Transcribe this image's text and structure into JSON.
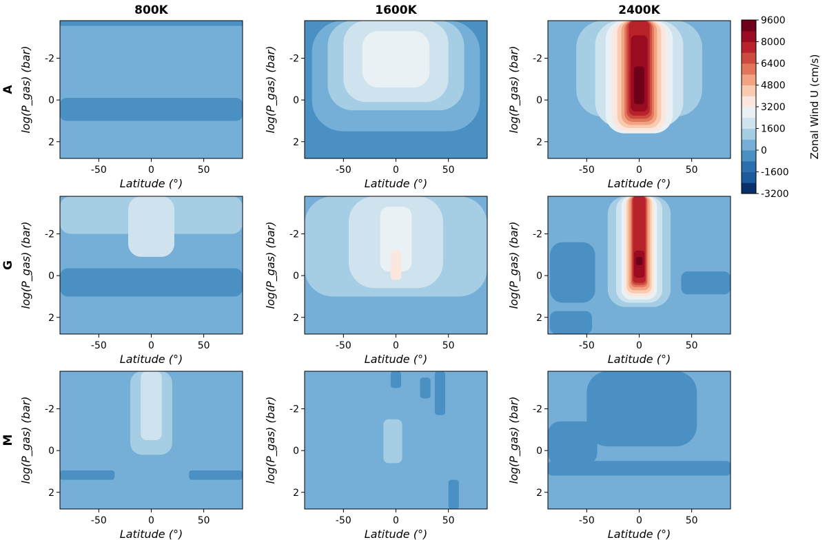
{
  "chart_data": {
    "type": "contour",
    "column_titles": [
      "800K",
      "1600K",
      "2400K"
    ],
    "row_titles": [
      "A",
      "G",
      "M"
    ],
    "xlabel": "Latitude (°)",
    "ylabel": "log(P_gas) (bar)",
    "xlim": [
      -87,
      87
    ],
    "ylim": [
      2.8,
      -3.8
    ],
    "x_ticks": [
      -50,
      0,
      50
    ],
    "y_ticks": [
      -2,
      0,
      2
    ],
    "colorbar": {
      "label": "Zonal Wind U (cm/s)",
      "levels": [
        -3200,
        -2400,
        -1600,
        -800,
        0,
        800,
        1600,
        2400,
        3200,
        4000,
        4800,
        5600,
        6400,
        7200,
        8000,
        8800,
        9600
      ],
      "tick_labels": [
        9600,
        8000,
        6400,
        4800,
        3200,
        1600,
        0,
        -1600,
        -3200
      ],
      "colors": [
        "#08306b",
        "#1c5a9c",
        "#2b6fae",
        "#4a90c2",
        "#75afd7",
        "#a5cde3",
        "#cfe3ee",
        "#eaf1f5",
        "#fbe7de",
        "#f9cbb0",
        "#f1a384",
        "#e2765b",
        "#cd4a3f",
        "#b8232b",
        "#9a0b22",
        "#6e0019"
      ]
    },
    "panels": [
      {
        "model": "A",
        "temperature": "800K",
        "background_u": 400,
        "regions": [
          {
            "u": -400,
            "lat": [
              -87,
              87
            ],
            "p": [
              -0.1,
              1.0
            ]
          },
          {
            "u": -400,
            "lat": [
              -87,
              87
            ],
            "p": [
              -3.8,
              -3.55
            ]
          },
          {
            "u": 400,
            "lat": [
              -84,
              -29
            ],
            "p": [
              1.45,
              2.8
            ]
          },
          {
            "u": 400,
            "lat": [
              -25,
              83
            ],
            "p": [
              1.45,
              2.8
            ]
          }
        ]
      },
      {
        "model": "A",
        "temperature": "1600K",
        "background_u": -400,
        "regions": [
          {
            "u": 400,
            "lat": [
              -80,
              80
            ],
            "p": [
              -3.8,
              1.5
            ]
          },
          {
            "u": 1200,
            "lat": [
              -65,
              65
            ],
            "p": [
              -3.8,
              0.5
            ]
          },
          {
            "u": 2000,
            "lat": [
              -50,
              50
            ],
            "p": [
              -3.8,
              0.1
            ]
          },
          {
            "u": 2800,
            "lat": [
              -32,
              32
            ],
            "p": [
              -3.3,
              -0.6
            ]
          }
        ]
      },
      {
        "model": "A",
        "temperature": "2400K",
        "background_u": 400,
        "regions": [
          {
            "u": 1200,
            "lat": [
              -60,
              60
            ],
            "p": [
              -3.8,
              0.8
            ]
          },
          {
            "u": 2000,
            "lat": [
              -42,
              42
            ],
            "p": [
              -3.8,
              1.3
            ]
          },
          {
            "u": 2800,
            "lat": [
              -32,
              32
            ],
            "p": [
              -3.8,
              1.6
            ]
          },
          {
            "u": 3600,
            "lat": [
              -26,
              26
            ],
            "p": [
              -3.8,
              1.5
            ]
          },
          {
            "u": 4400,
            "lat": [
              -21,
              21
            ],
            "p": [
              -3.8,
              1.35
            ]
          },
          {
            "u": 5200,
            "lat": [
              -17,
              17
            ],
            "p": [
              -3.8,
              1.2
            ]
          },
          {
            "u": 6000,
            "lat": [
              -14,
              14
            ],
            "p": [
              -3.8,
              1.05
            ]
          },
          {
            "u": 6800,
            "lat": [
              -12,
              12
            ],
            "p": [
              -3.8,
              0.9
            ]
          },
          {
            "u": 7600,
            "lat": [
              -10,
              10
            ],
            "p": [
              -3.8,
              0.75
            ]
          },
          {
            "u": 8400,
            "lat": [
              -8,
              8
            ],
            "p": [
              -3.1,
              0.55
            ]
          },
          {
            "u": 9200,
            "lat": [
              -5,
              5
            ],
            "p": [
              -1.6,
              0.2
            ]
          }
        ]
      },
      {
        "model": "G",
        "temperature": "800K",
        "background_u": 400,
        "regions": [
          {
            "u": 1200,
            "lat": [
              -87,
              87
            ],
            "p": [
              -3.8,
              -2.0
            ]
          },
          {
            "u": 2000,
            "lat": [
              -22,
              22
            ],
            "p": [
              -3.8,
              -0.9
            ]
          },
          {
            "u": -400,
            "lat": [
              -87,
              87
            ],
            "p": [
              -0.35,
              1.0
            ]
          }
        ]
      },
      {
        "model": "G",
        "temperature": "1600K",
        "background_u": 400,
        "regions": [
          {
            "u": 1200,
            "lat": [
              -87,
              87
            ],
            "p": [
              -3.8,
              1.0
            ]
          },
          {
            "u": 2000,
            "lat": [
              -45,
              45
            ],
            "p": [
              -3.8,
              0.6
            ]
          },
          {
            "u": 2800,
            "lat": [
              -15,
              15
            ],
            "p": [
              -3.3,
              -0.2
            ]
          },
          {
            "u": 3600,
            "lat": [
              -5,
              5
            ],
            "p": [
              -1.2,
              0.2
            ]
          }
        ]
      },
      {
        "model": "G",
        "temperature": "2400K",
        "background_u": 400,
        "regions": [
          {
            "u": 1200,
            "lat": [
              -30,
              30
            ],
            "p": [
              -3.8,
              1.5
            ]
          },
          {
            "u": 2000,
            "lat": [
              -22,
              22
            ],
            "p": [
              -3.8,
              1.3
            ]
          },
          {
            "u": 2800,
            "lat": [
              -17,
              17
            ],
            "p": [
              -3.8,
              1.15
            ]
          },
          {
            "u": 3600,
            "lat": [
              -14,
              14
            ],
            "p": [
              -3.8,
              1.0
            ]
          },
          {
            "u": 4400,
            "lat": [
              -12,
              12
            ],
            "p": [
              -3.8,
              0.85
            ]
          },
          {
            "u": 5200,
            "lat": [
              -10,
              10
            ],
            "p": [
              -3.8,
              0.7
            ]
          },
          {
            "u": 6000,
            "lat": [
              -8,
              8
            ],
            "p": [
              -3.8,
              0.55
            ]
          },
          {
            "u": 6800,
            "lat": [
              -7,
              7
            ],
            "p": [
              -3.8,
              0.45
            ]
          },
          {
            "u": 7600,
            "lat": [
              -6,
              6
            ],
            "p": [
              -3.8,
              0.35
            ]
          },
          {
            "u": 8400,
            "lat": [
              -5,
              5
            ],
            "p": [
              -1.2,
              0.1
            ]
          },
          {
            "u": 9200,
            "lat": [
              -3,
              3
            ],
            "p": [
              -0.9,
              -0.5
            ]
          },
          {
            "u": -400,
            "lat": [
              -85,
              -42
            ],
            "p": [
              -1.6,
              1.3
            ]
          },
          {
            "u": -400,
            "lat": [
              40,
              87
            ],
            "p": [
              -0.2,
              0.9
            ]
          },
          {
            "u": -400,
            "lat": [
              -85,
              -45
            ],
            "p": [
              1.7,
              2.8
            ]
          }
        ]
      },
      {
        "model": "M",
        "temperature": "800K",
        "background_u": 400,
        "regions": [
          {
            "u": 1200,
            "lat": [
              -20,
              20
            ],
            "p": [
              -3.8,
              0.2
            ]
          },
          {
            "u": 2000,
            "lat": [
              -10,
              10
            ],
            "p": [
              -3.8,
              -0.5
            ]
          },
          {
            "u": -400,
            "lat": [
              -87,
              -35
            ],
            "p": [
              0.95,
              1.4
            ]
          },
          {
            "u": -400,
            "lat": [
              36,
              87
            ],
            "p": [
              0.95,
              1.4
            ]
          }
        ]
      },
      {
        "model": "M",
        "temperature": "1600K",
        "background_u": 400,
        "regions": [
          {
            "u": -400,
            "lat": [
              -5,
              5
            ],
            "p": [
              -3.8,
              -3.0
            ]
          },
          {
            "u": -400,
            "lat": [
              23,
              33
            ],
            "p": [
              -3.5,
              -2.5
            ]
          },
          {
            "u": -400,
            "lat": [
              37,
              47
            ],
            "p": [
              -3.8,
              -1.7
            ]
          },
          {
            "u": 1200,
            "lat": [
              -12,
              6
            ],
            "p": [
              -1.5,
              0.6
            ]
          },
          {
            "u": -400,
            "lat": [
              50,
              60
            ],
            "p": [
              1.4,
              2.8
            ]
          }
        ]
      },
      {
        "model": "M",
        "temperature": "2400K",
        "background_u": 400,
        "regions": [
          {
            "u": -400,
            "lat": [
              -50,
              55
            ],
            "p": [
              -3.8,
              -0.2
            ]
          },
          {
            "u": -400,
            "lat": [
              -87,
              -40
            ],
            "p": [
              -1.4,
              0.7
            ]
          },
          {
            "u": -400,
            "lat": [
              -87,
              87
            ],
            "p": [
              0.5,
              1.2
            ]
          }
        ]
      }
    ]
  }
}
